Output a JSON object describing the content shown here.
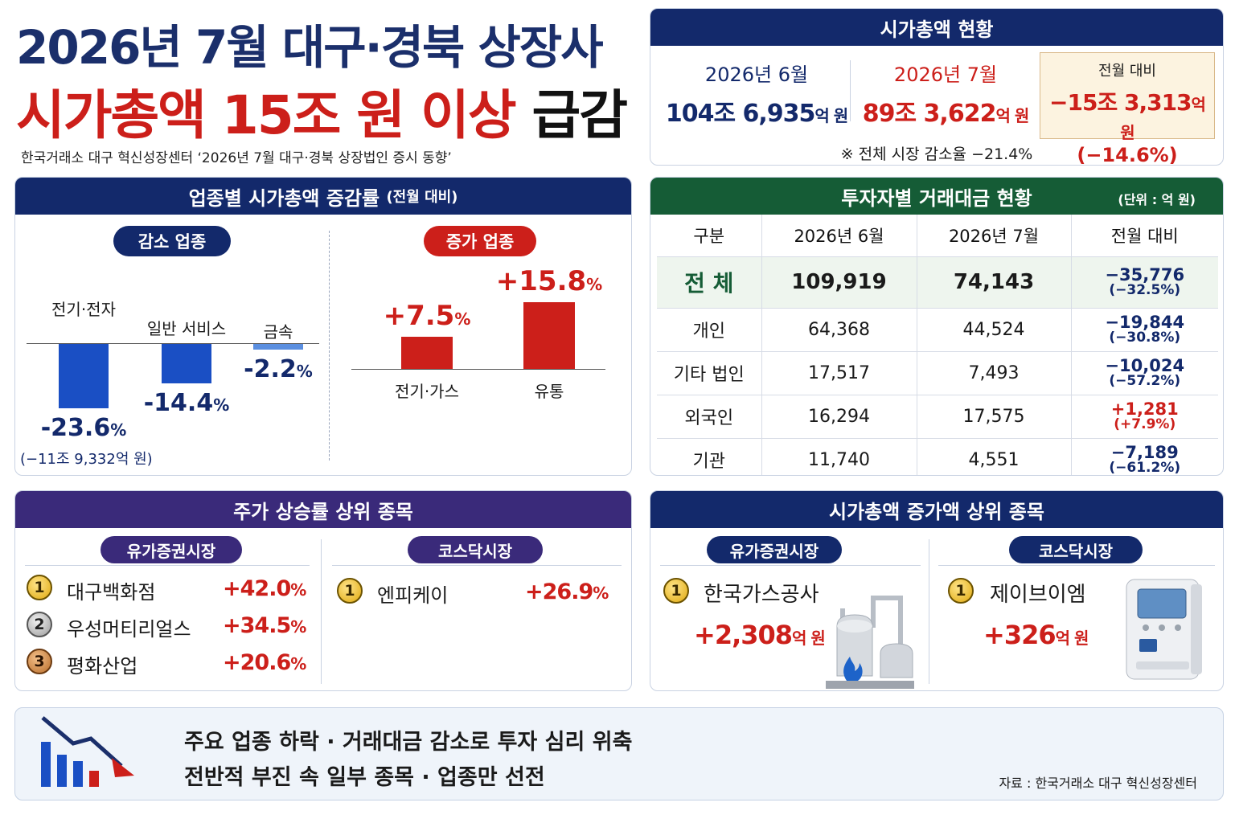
{
  "header": {
    "title_line1": "2026년 7월 대구·경북 상장사",
    "title_line2_red": "시가총액 15조 원 이상 ",
    "title_line2_black": "급감",
    "subtitle": "한국거래소 대구 혁신성장센터 ‘2026년 7월 대구·경북 상장법인 증시 동향’"
  },
  "market_cap": {
    "title": "시가총액 현황",
    "june": {
      "label": "2026년 6월",
      "value": "104조 6,935",
      "unit": "억 원"
    },
    "july": {
      "label": "2026년 7월",
      "value": "89조 3,622",
      "unit": "억 원"
    },
    "change": {
      "label": "전월 대비",
      "value": "−15조 3,313",
      "unit": "억 원",
      "pct": "(−14.6%)"
    },
    "note": "※ 전체 시장 감소율  −21.4%"
  },
  "sector": {
    "title": "업종별 시가총액 증감률",
    "title_sub": "(전월 대비)",
    "decrease_label": "감소 업종",
    "increase_label": "증가 업종",
    "decrease": [
      {
        "name": "전기·전자",
        "value": "-23.6",
        "unit": "%",
        "extra": "(−11조 9,332억 원)"
      },
      {
        "name": "일반 서비스",
        "value": "-14.4",
        "unit": "%"
      },
      {
        "name": "금속",
        "value": "-2.2",
        "unit": "%"
      }
    ],
    "increase": [
      {
        "name": "전기·가스",
        "value": "+7.5",
        "unit": "%"
      },
      {
        "name": "유통",
        "value": "+15.8",
        "unit": "%"
      }
    ]
  },
  "chart_data": {
    "type": "bar",
    "title": "업종별 시가총액 증감률 (전월 대비)",
    "categories": [
      "전기·전자",
      "일반 서비스",
      "금속",
      "전기·가스",
      "유통"
    ],
    "values": [
      -23.6,
      -14.4,
      -2.2,
      7.5,
      15.8
    ],
    "ylabel": "%",
    "colors": {
      "decrease": "#1a4fc4",
      "decrease_light": "#5b8fe0",
      "increase": "#cc1f1a"
    }
  },
  "investor": {
    "title": "투자자별 거래대금 현황",
    "unit": "(단위 : 억 원)",
    "columns": [
      "구분",
      "2026년 6월",
      "2026년 7월",
      "전월 대비"
    ],
    "total": {
      "name": "전 체",
      "june": "109,919",
      "july": "74,143",
      "chg": "−35,776",
      "pct": "(−32.5%)"
    },
    "rows": [
      {
        "name": "개인",
        "june": "64,368",
        "july": "44,524",
        "chg": "−19,844",
        "pct": "(−30.8%)"
      },
      {
        "name": "기타 법인",
        "june": "17,517",
        "july": "7,493",
        "chg": "−10,024",
        "pct": "(−57.2%)"
      },
      {
        "name": "외국인",
        "june": "16,294",
        "july": "17,575",
        "chg": "+1,281",
        "pct": "(+7.9%)"
      },
      {
        "name": "기관",
        "june": "11,740",
        "july": "4,551",
        "chg": "−7,189",
        "pct": "(−61.2%)"
      }
    ]
  },
  "gainers": {
    "title": "주가 상승률 상위 종목",
    "kospi_label": "유가증권시장",
    "kosdaq_label": "코스닥시장",
    "kospi": [
      {
        "rank": "1",
        "name": "대구백화점",
        "value": "+42.0",
        "unit": "%"
      },
      {
        "rank": "2",
        "name": "우성머티리얼스",
        "value": "+34.5",
        "unit": "%"
      },
      {
        "rank": "3",
        "name": "평화산업",
        "value": "+20.6",
        "unit": "%"
      }
    ],
    "kosdaq": [
      {
        "rank": "1",
        "name": "엔피케이",
        "value": "+26.9",
        "unit": "%"
      }
    ]
  },
  "cap_increase": {
    "title": "시가총액 증가액 상위 종목",
    "kospi_label": "유가증권시장",
    "kosdaq_label": "코스닥시장",
    "kospi": {
      "rank": "1",
      "name": "한국가스공사",
      "value": "+2,308",
      "unit": "억 원",
      "icon": "gas-plant-icon"
    },
    "kosdaq": {
      "rank": "1",
      "name": "제이브이엠",
      "value": "+326",
      "unit": "억 원",
      "icon": "medicine-dispenser-icon"
    }
  },
  "bottom": {
    "line1": "주요 업종 하락 · 거래대금 감소로 투자 심리 위축",
    "line2": "전반적 부진 속 일부 종목 · 업종만 선전",
    "source": "자료 : 한국거래소 대구 혁신성장센터",
    "icon": "declining-chart-icon"
  }
}
